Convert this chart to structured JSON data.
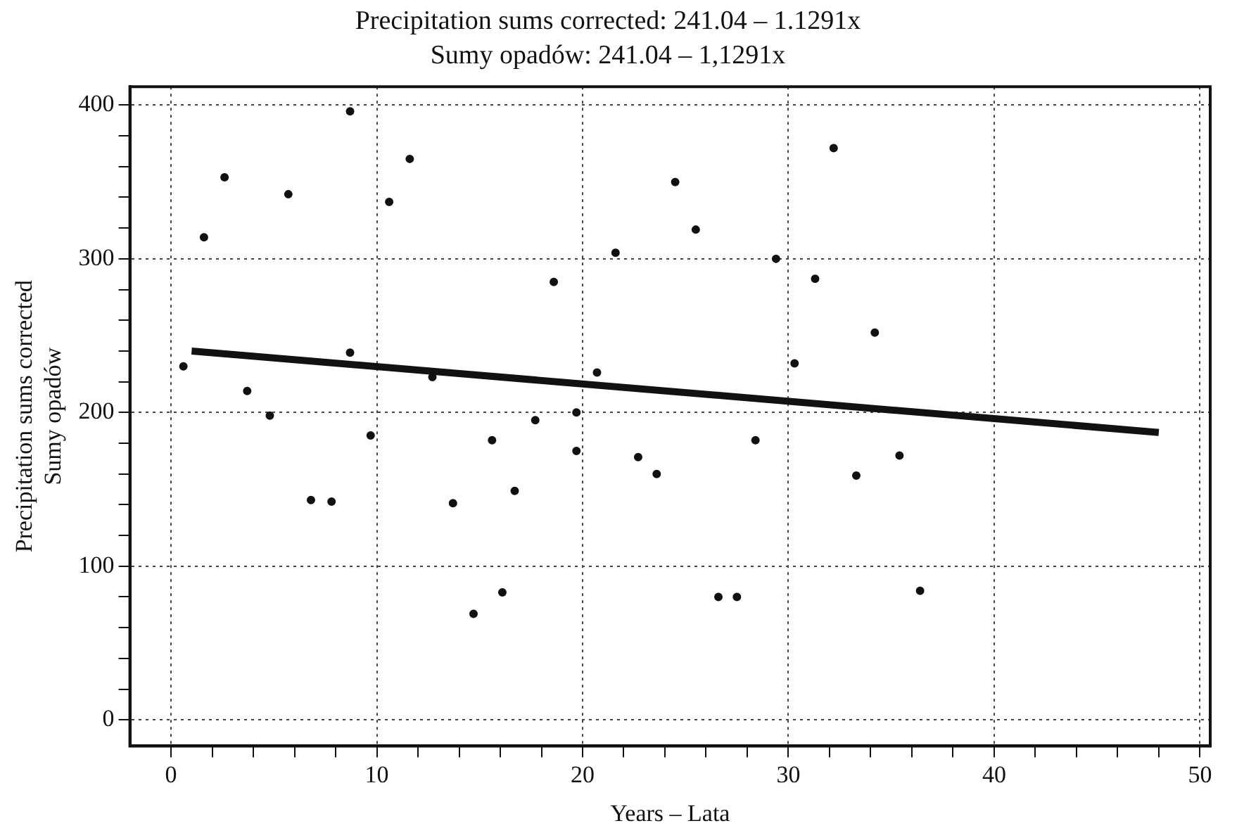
{
  "chart_data": {
    "type": "scatter",
    "title": "Precipitation sums corrected: 241.04 – 1.1291x",
    "subtitle": "Sumy opadów: 241.04 – 1,1291x",
    "xlabel": "Years – Lata",
    "ylabel": "Precipitation sums corrected\nSumy opadów",
    "xlim": [
      -2,
      50.5
    ],
    "xticks": [
      0,
      {
        "value": 2,
        "label": null
      },
      {
        "value": 4,
        "label": null
      },
      {
        "value": 6,
        "label": null
      },
      {
        "value": 8,
        "label": null
      },
      10,
      {
        "value": 12,
        "label": null
      },
      {
        "value": 14,
        "label": null
      },
      {
        "value": 16,
        "label": null
      },
      {
        "value": 18,
        "label": null
      },
      20,
      {
        "value": 22,
        "label": null
      },
      {
        "value": 24,
        "label": null
      },
      {
        "value": 26,
        "label": null
      },
      {
        "value": 28,
        "label": null
      },
      30,
      {
        "value": 32,
        "label": null
      },
      {
        "value": 34,
        "label": null
      },
      {
        "value": 36,
        "label": null
      },
      {
        "value": 38,
        "label": null
      },
      40,
      {
        "value": 42,
        "label": null
      },
      {
        "value": 44,
        "label": null
      },
      {
        "value": 46,
        "label": null
      },
      {
        "value": 48,
        "label": null
      },
      50
    ],
    "ylim": [
      -17,
      412
    ],
    "yticks": [
      0,
      {
        "value": 20,
        "label": null
      },
      {
        "value": 40,
        "label": null
      },
      {
        "value": 60,
        "label": null
      },
      {
        "value": 80,
        "label": null
      },
      100,
      {
        "value": 120,
        "label": null
      },
      {
        "value": 140,
        "label": null
      },
      {
        "value": 160,
        "label": null
      },
      {
        "value": 180,
        "label": null
      },
      200,
      {
        "value": 220,
        "label": null
      },
      {
        "value": 240,
        "label": null
      },
      {
        "value": 260,
        "label": null
      },
      {
        "value": 280,
        "label": null
      },
      300,
      {
        "value": 320,
        "label": null
      },
      {
        "value": 340,
        "label": null
      },
      {
        "value": 360,
        "label": null
      },
      {
        "value": 380,
        "label": null
      },
      400
    ],
    "grid": true,
    "series": [
      {
        "color": "#111111",
        "marker": "circle",
        "x": [
          0.6,
          1.6,
          2.6,
          3.7,
          4.8,
          5.7,
          6.8,
          7.8,
          8.7,
          8.7,
          9.7,
          10.6,
          11.6,
          12.7,
          13.7,
          14.7,
          15.6,
          16.1,
          16.7,
          17.7,
          18.6,
          19.7,
          19.7,
          20.7,
          21.6,
          22.7,
          23.6,
          24.5,
          25.5,
          26.6,
          27.5,
          28.4,
          29.4,
          30.3,
          31.3,
          32.2,
          33.3,
          34.2,
          35.4,
          36.4
        ],
        "values": [
          230,
          314,
          353,
          214,
          198,
          342,
          143,
          142,
          396,
          239,
          185,
          337,
          365,
          223,
          141,
          69,
          182,
          83,
          149,
          195,
          285,
          200,
          175,
          226,
          304,
          171,
          160,
          350,
          319,
          80,
          80,
          182,
          300,
          232,
          287,
          372,
          159,
          252,
          172,
          84
        ]
      },
      {
        "type": "line",
        "color": "#111111",
        "marker": "none",
        "x": [
          1,
          48
        ],
        "values": [
          240,
          187
        ]
      }
    ]
  }
}
